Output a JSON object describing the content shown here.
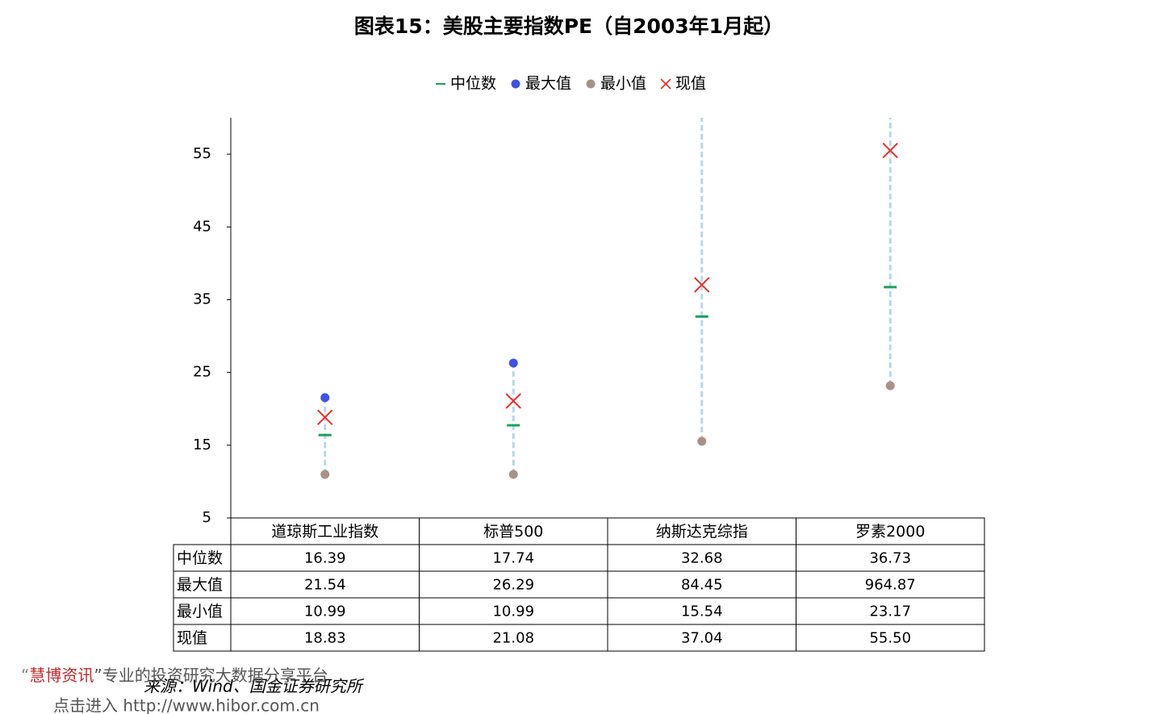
{
  "chart_data": {
    "type": "range-dot",
    "title": "图表15：美股主要指数PE（自2003年1月起）",
    "categories": [
      "道琼斯工业指数",
      "标普500",
      "纳斯达克综指",
      "罗素2000"
    ],
    "series": [
      {
        "name": "中位数",
        "color": "#1aa35a",
        "marker": "dash",
        "values": [
          16.39,
          17.74,
          32.68,
          36.73
        ],
        "value_labels": [
          "16.39",
          "17.74",
          "32.68",
          "36.73"
        ]
      },
      {
        "name": "最大值",
        "color": "#3f51e8",
        "marker": "dot",
        "values": [
          21.54,
          26.29,
          84.45,
          964.87
        ],
        "value_labels": [
          "21.54",
          "26.29",
          "84.45",
          "964.87"
        ]
      },
      {
        "name": "最小值",
        "color": "#a89287",
        "marker": "dot",
        "values": [
          10.99,
          10.99,
          15.54,
          23.17
        ],
        "value_labels": [
          "10.99",
          "10.99",
          "15.54",
          "23.17"
        ]
      },
      {
        "name": "现值",
        "color": "#e8302a",
        "marker": "cross",
        "values": [
          18.83,
          21.08,
          37.04,
          55.5
        ],
        "value_labels": [
          "18.83",
          "21.08",
          "37.04",
          "55.50"
        ]
      }
    ],
    "range_color": "#b6d7ee",
    "ylim": [
      5,
      60
    ],
    "yticks": [
      5,
      15,
      25,
      35,
      45,
      55
    ],
    "source": "来源：Wind、国金证券研究所"
  },
  "watermark": {
    "line1_quote_open": "“",
    "line1_brand": "慧博资讯",
    "line1_rest": "”专业的投资研究大数据分享平台",
    "line2": "点击进入 http://www.hibor.com.cn"
  }
}
